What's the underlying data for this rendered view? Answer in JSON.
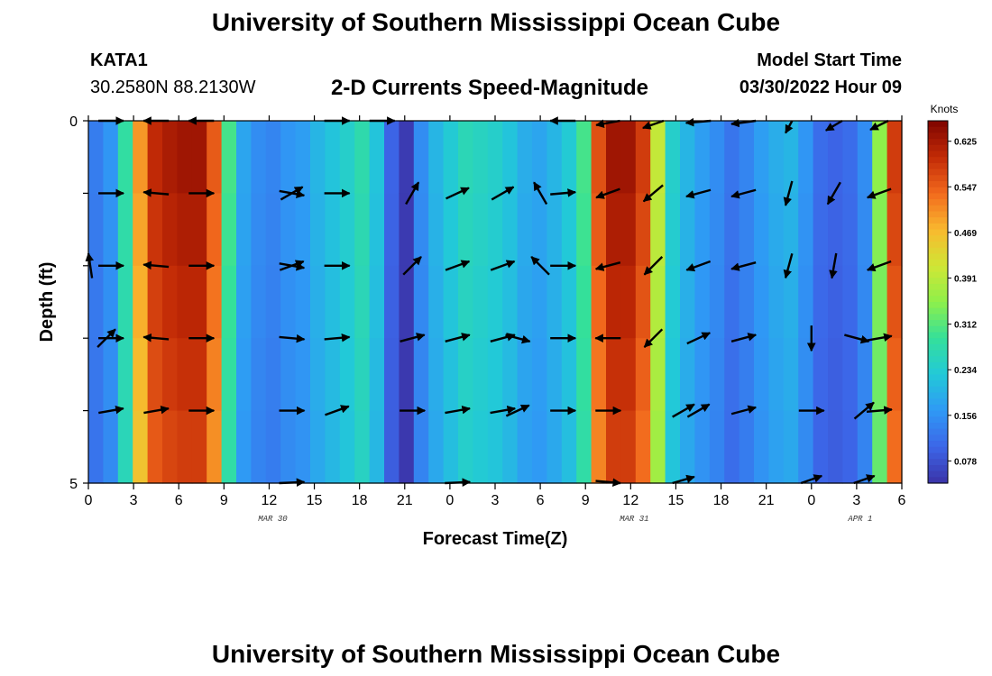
{
  "page": {
    "title_top": "University of Southern Mississippi Ocean Cube",
    "title_bottom": "University of Southern Mississippi Ocean Cube",
    "station": "KATA1",
    "coords": "30.2580N  88.2130W",
    "plot_title": "2-D Currents Speed-Magnitude",
    "model_start_label": "Model Start Time",
    "model_start_value": "03/30/2022 Hour 09"
  },
  "colors": {
    "palette": [
      "#3b33a8",
      "#3c66e8",
      "#2f99f5",
      "#22c9d8",
      "#34e09a",
      "#8ef04a",
      "#d0e635",
      "#f9b82e",
      "#f2691d",
      "#c22a06",
      "#7e0400"
    ]
  },
  "chart_data": {
    "type": "heatmap",
    "title": "2-D Currents Speed-Magnitude",
    "xlabel": "Forecast Time(Z)",
    "ylabel": "Depth (ft)",
    "colorbar_label": "Knots",
    "colorbar_ticks": [
      "0.078",
      "0.156",
      "0.234",
      "0.312",
      "0.391",
      "0.469",
      "0.547",
      "0.625"
    ],
    "colorbar_range": [
      0.04,
      0.66
    ],
    "x_tick_labels": [
      "0",
      "3",
      "6",
      "9",
      "12",
      "15",
      "18",
      "21",
      "0",
      "3",
      "6",
      "9",
      "12",
      "15",
      "18",
      "21",
      "0",
      "3",
      "6"
    ],
    "y_ticks": [
      {
        "depth": 0,
        "label": "0"
      },
      {
        "depth": 5,
        "label": "5"
      }
    ],
    "y_range": [
      0,
      5
    ],
    "x_range_hours": [
      0,
      54
    ],
    "date_labels": [
      {
        "hour": 12,
        "text": "MAR 30"
      },
      {
        "hour": 36,
        "text": "MAR 31"
      },
      {
        "hour": 51,
        "text": "APR 1"
      }
    ],
    "speed_knots_by_hour": [
      0.13,
      0.16,
      0.28,
      0.5,
      0.6,
      0.62,
      0.63,
      0.63,
      0.55,
      0.3,
      0.18,
      0.15,
      0.14,
      0.16,
      0.17,
      0.2,
      0.22,
      0.24,
      0.27,
      0.22,
      0.1,
      0.05,
      0.15,
      0.2,
      0.23,
      0.26,
      0.25,
      0.24,
      0.22,
      0.19,
      0.18,
      0.2,
      0.23,
      0.3,
      0.56,
      0.63,
      0.63,
      0.58,
      0.4,
      0.24,
      0.2,
      0.17,
      0.15,
      0.12,
      0.14,
      0.17,
      0.19,
      0.2,
      0.16,
      0.11,
      0.1,
      0.11,
      0.15,
      0.35,
      0.58
    ],
    "depth_rows_ft": [
      0,
      1,
      2,
      3,
      4,
      5
    ],
    "vectors": [
      {
        "hour": 1.5,
        "depth": 0,
        "angle": 0
      },
      {
        "hour": 4.5,
        "depth": 0,
        "angle": 180
      },
      {
        "hour": 7.5,
        "depth": 0,
        "angle": 180
      },
      {
        "hour": 16.5,
        "depth": 0,
        "angle": 0
      },
      {
        "hour": 19.5,
        "depth": 0,
        "angle": 0
      },
      {
        "hour": 31.5,
        "depth": 0,
        "angle": 180
      },
      {
        "hour": 34.5,
        "depth": 0,
        "angle": 160
      },
      {
        "hour": 37.5,
        "depth": 0,
        "angle": 145
      },
      {
        "hour": 40.5,
        "depth": 0,
        "angle": 170
      },
      {
        "hour": 43.5,
        "depth": 0,
        "angle": 165
      },
      {
        "hour": 46.5,
        "depth": 0,
        "angle": 105
      },
      {
        "hour": 49.5,
        "depth": 0,
        "angle": 130
      },
      {
        "hour": 52.5,
        "depth": 0,
        "angle": 135
      },
      {
        "hour": 1.5,
        "depth": 1,
        "angle": 0
      },
      {
        "hour": 4.5,
        "depth": 1,
        "angle": 185
      },
      {
        "hour": 7.5,
        "depth": 1,
        "angle": 0
      },
      {
        "hour": 13.5,
        "depth": 1,
        "angle": -30
      },
      {
        "hour": 13.5,
        "depth": 1,
        "angle": 10
      },
      {
        "hour": 16.5,
        "depth": 1,
        "angle": 0
      },
      {
        "hour": 21.5,
        "depth": 1,
        "angle": -60
      },
      {
        "hour": 24.5,
        "depth": 1,
        "angle": -25
      },
      {
        "hour": 27.5,
        "depth": 1,
        "angle": -30
      },
      {
        "hour": 30.0,
        "depth": 1,
        "angle": -120
      },
      {
        "hour": 31.5,
        "depth": 1,
        "angle": -5
      },
      {
        "hour": 34.5,
        "depth": 1,
        "angle": 160
      },
      {
        "hour": 37.5,
        "depth": 1,
        "angle": 140
      },
      {
        "hour": 40.5,
        "depth": 1,
        "angle": 165
      },
      {
        "hour": 43.5,
        "depth": 1,
        "angle": 165
      },
      {
        "hour": 46.5,
        "depth": 1,
        "angle": 105
      },
      {
        "hour": 49.5,
        "depth": 1,
        "angle": 120
      },
      {
        "hour": 52.5,
        "depth": 1,
        "angle": 160
      },
      {
        "hour": 0.1,
        "depth": 2,
        "angle": -100
      },
      {
        "hour": 1.5,
        "depth": 2,
        "angle": 0
      },
      {
        "hour": 4.5,
        "depth": 2,
        "angle": 185
      },
      {
        "hour": 7.5,
        "depth": 2,
        "angle": 0
      },
      {
        "hour": 13.5,
        "depth": 2,
        "angle": -20
      },
      {
        "hour": 13.5,
        "depth": 2,
        "angle": 10
      },
      {
        "hour": 16.5,
        "depth": 2,
        "angle": 0
      },
      {
        "hour": 21.5,
        "depth": 2,
        "angle": -45
      },
      {
        "hour": 24.5,
        "depth": 2,
        "angle": -20
      },
      {
        "hour": 27.5,
        "depth": 2,
        "angle": -20
      },
      {
        "hour": 30.0,
        "depth": 2,
        "angle": -135
      },
      {
        "hour": 31.5,
        "depth": 2,
        "angle": 0
      },
      {
        "hour": 34.5,
        "depth": 2,
        "angle": 165
      },
      {
        "hour": 37.5,
        "depth": 2,
        "angle": 135
      },
      {
        "hour": 40.5,
        "depth": 2,
        "angle": 160
      },
      {
        "hour": 43.5,
        "depth": 2,
        "angle": 165
      },
      {
        "hour": 46.5,
        "depth": 2,
        "angle": 105
      },
      {
        "hour": 49.5,
        "depth": 2,
        "angle": 100
      },
      {
        "hour": 52.5,
        "depth": 2,
        "angle": 160
      },
      {
        "hour": 1.2,
        "depth": 3,
        "angle": -45
      },
      {
        "hour": 1.5,
        "depth": 3,
        "angle": 0
      },
      {
        "hour": 4.5,
        "depth": 3,
        "angle": 185
      },
      {
        "hour": 7.5,
        "depth": 3,
        "angle": 0
      },
      {
        "hour": 13.5,
        "depth": 3,
        "angle": 5
      },
      {
        "hour": 16.5,
        "depth": 3,
        "angle": -5
      },
      {
        "hour": 21.5,
        "depth": 3,
        "angle": -15
      },
      {
        "hour": 24.5,
        "depth": 3,
        "angle": -15
      },
      {
        "hour": 27.5,
        "depth": 3,
        "angle": -15
      },
      {
        "hour": 28.5,
        "depth": 3,
        "angle": 15
      },
      {
        "hour": 31.5,
        "depth": 3,
        "angle": 0
      },
      {
        "hour": 34.5,
        "depth": 3,
        "angle": 180
      },
      {
        "hour": 37.5,
        "depth": 3,
        "angle": 135
      },
      {
        "hour": 40.5,
        "depth": 3,
        "angle": -25
      },
      {
        "hour": 43.5,
        "depth": 3,
        "angle": -15
      },
      {
        "hour": 48.0,
        "depth": 3,
        "angle": 90
      },
      {
        "hour": 51.0,
        "depth": 3,
        "angle": 15
      },
      {
        "hour": 52.5,
        "depth": 3,
        "angle": -10
      },
      {
        "hour": 1.5,
        "depth": 4,
        "angle": -10
      },
      {
        "hour": 4.5,
        "depth": 4,
        "angle": -10
      },
      {
        "hour": 7.5,
        "depth": 4,
        "angle": 0
      },
      {
        "hour": 13.5,
        "depth": 4,
        "angle": 0
      },
      {
        "hour": 16.5,
        "depth": 4,
        "angle": -20
      },
      {
        "hour": 21.5,
        "depth": 4,
        "angle": 0
      },
      {
        "hour": 24.5,
        "depth": 4,
        "angle": -10
      },
      {
        "hour": 27.5,
        "depth": 4,
        "angle": -10
      },
      {
        "hour": 28.5,
        "depth": 4,
        "angle": -25
      },
      {
        "hour": 31.5,
        "depth": 4,
        "angle": 0
      },
      {
        "hour": 34.5,
        "depth": 4,
        "angle": 0
      },
      {
        "hour": 39.5,
        "depth": 4,
        "angle": -30
      },
      {
        "hour": 40.5,
        "depth": 4,
        "angle": -30
      },
      {
        "hour": 43.5,
        "depth": 4,
        "angle": -15
      },
      {
        "hour": 48.0,
        "depth": 4,
        "angle": 0
      },
      {
        "hour": 51.5,
        "depth": 4,
        "angle": -40
      },
      {
        "hour": 52.5,
        "depth": 4,
        "angle": -5
      },
      {
        "hour": 13.5,
        "depth": 5,
        "angle": -5
      },
      {
        "hour": 24.5,
        "depth": 5,
        "angle": -5
      },
      {
        "hour": 34.5,
        "depth": 5,
        "angle": 10
      },
      {
        "hour": 39.5,
        "depth": 5,
        "angle": -30
      },
      {
        "hour": 48.0,
        "depth": 5,
        "angle": -35
      },
      {
        "hour": 51.5,
        "depth": 5,
        "angle": -35
      }
    ]
  }
}
